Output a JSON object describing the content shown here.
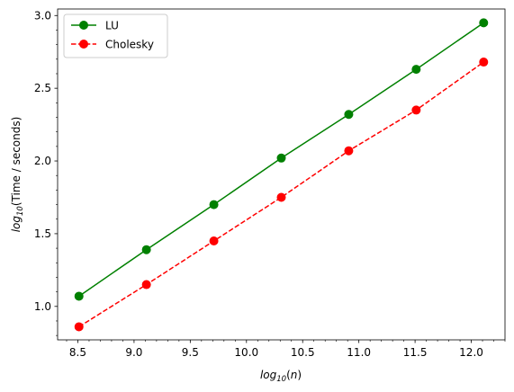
{
  "chart_data": {
    "type": "line",
    "xlabel": {
      "prefix": "log",
      "sub": "10",
      "rest": "(n)"
    },
    "ylabel": {
      "prefix": "log",
      "sub": "10",
      "rest": "(Time / seconds)"
    },
    "xlim": [
      8.32,
      12.3
    ],
    "ylim": [
      0.77,
      3.045
    ],
    "xticks": [
      8.5,
      9.0,
      9.5,
      10.0,
      10.5,
      11.0,
      11.5,
      12.0
    ],
    "xtick_labels": [
      "8.5",
      "9.0",
      "9.5",
      "10.0",
      "10.5",
      "11.0",
      "11.5",
      "12.0"
    ],
    "yticks": [
      1.0,
      1.5,
      2.0,
      2.5,
      3.0
    ],
    "ytick_labels": [
      "1.0",
      "1.5",
      "2.0",
      "2.5",
      "3.0"
    ],
    "grid": false,
    "legend_position": "top-left",
    "series": [
      {
        "name": "LU",
        "color": "#008000",
        "linestyle": "solid",
        "marker": "circle",
        "x": [
          8.51,
          9.11,
          9.71,
          10.31,
          10.91,
          11.51,
          12.11
        ],
        "y": [
          1.07,
          1.39,
          1.7,
          2.02,
          2.32,
          2.63,
          2.95
        ]
      },
      {
        "name": "Cholesky",
        "color": "#ff0000",
        "linestyle": "dashed",
        "marker": "circle",
        "x": [
          8.51,
          9.11,
          9.71,
          10.31,
          10.91,
          11.51,
          12.11
        ],
        "y": [
          0.86,
          1.15,
          1.45,
          1.75,
          2.07,
          2.35,
          2.68
        ]
      }
    ]
  }
}
